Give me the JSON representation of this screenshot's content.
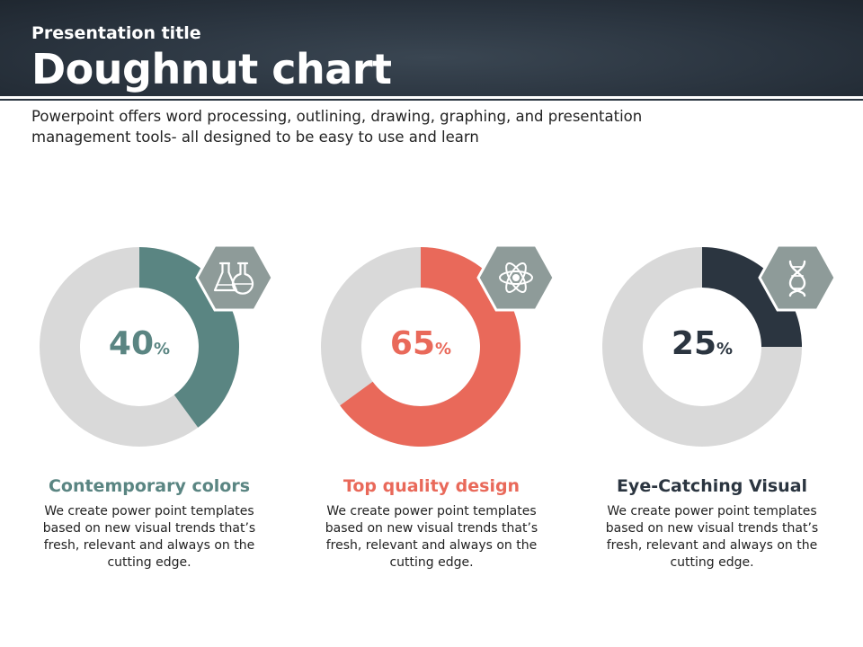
{
  "header": {
    "subtitle": "Presentation title",
    "title": "Doughnut chart"
  },
  "intro": "Powerpoint offers word processing, outlining, drawing, graphing, and presentation management tools- all designed to be easy to use and learn",
  "colors": {
    "track": "#d9d9d9",
    "teal": "#5a8582",
    "coral": "#e9695a",
    "navy": "#2b3540",
    "hex": "#8e9b99"
  },
  "chart_data": [
    {
      "type": "pie",
      "value": 40,
      "value_label": "40",
      "symbol": "%",
      "color": "#5a8582",
      "title": "Contemporary colors",
      "icon": "flask-icon",
      "description": "We create power point templates based on new visual trends that’s fresh, relevant and always on the cutting  edge."
    },
    {
      "type": "pie",
      "value": 65,
      "value_label": "65",
      "symbol": "%",
      "color": "#e9695a",
      "title": "Top quality design",
      "icon": "atom-icon",
      "description": "We create power point templates based on new visual trends that’s fresh, relevant and always on the cutting  edge."
    },
    {
      "type": "pie",
      "value": 25,
      "value_label": "25",
      "symbol": "%",
      "color": "#2b3540",
      "title": "Eye-Catching Visual",
      "icon": "dna-icon",
      "description": "We create power point templates based on new visual trends that’s fresh, relevant and always on the cutting  edge."
    }
  ]
}
